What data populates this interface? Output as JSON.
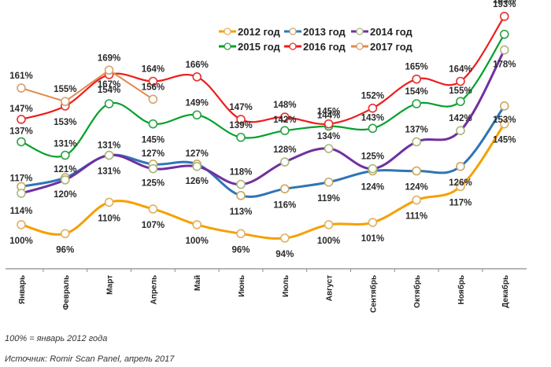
{
  "chart_data": {
    "type": "line",
    "title": "",
    "xlabel": "",
    "ylabel": "",
    "ylim": [
      80,
      196
    ],
    "grid": false,
    "legend_position": "top-right",
    "categories": [
      "Январь",
      "Февраль",
      "Март",
      "Апрель",
      "Май",
      "Июнь",
      "Июль",
      "Август",
      "Сентябрь",
      "Октябрь",
      "Ноябрь",
      "Декабрь"
    ],
    "series": [
      {
        "name": "2012 год",
        "color": "#F5A000",
        "values": [
          100,
          96,
          110,
          107,
          100,
          96,
          94,
          100,
          101,
          111,
          117,
          145
        ]
      },
      {
        "name": "2013 год",
        "color": "#2E75B6",
        "values": [
          117,
          121,
          131,
          127,
          127,
          113,
          116,
          119,
          124,
          124,
          126,
          153
        ]
      },
      {
        "name": "2014 год",
        "color": "#7030A0",
        "values": [
          114,
          120,
          131,
          125,
          126,
          118,
          128,
          134,
          125,
          137,
          142,
          178
        ]
      },
      {
        "name": "2015 год",
        "color": "#00A02A",
        "values": [
          137,
          131,
          154,
          145,
          149,
          139,
          142,
          144,
          143,
          154,
          155,
          185
        ]
      },
      {
        "name": "2016 год",
        "color": "#EE1C1C",
        "values": [
          147,
          153,
          167,
          164,
          166,
          147,
          148,
          145,
          152,
          165,
          164,
          193
        ]
      },
      {
        "name": "2017 год",
        "color": "#E08A4A",
        "values": [
          161,
          155,
          169,
          156,
          null,
          null,
          null,
          null,
          null,
          null,
          null,
          null
        ]
      }
    ],
    "labels": {
      "2012 год": [
        "100%",
        "96%",
        "110%",
        "107%",
        "100%",
        "96%",
        "94%",
        "100%",
        "101%",
        "111%",
        "117%",
        "145%"
      ],
      "2013 год": [
        "117%",
        "121%",
        "131%",
        "127%",
        "127%",
        "113%",
        "116%",
        "119%",
        "124%",
        "124%",
        "126%",
        "153%"
      ],
      "2014 год": [
        "114%",
        "120%",
        "131%",
        "125%",
        "126%",
        "118%",
        "128%",
        "134%",
        "125%",
        "137%",
        "142%",
        "178%"
      ],
      "2015 год": [
        "137%",
        "131%",
        "154%",
        "145%",
        "149%",
        "139%",
        "142%",
        "144%",
        "143%",
        "154%",
        "155%",
        "185%"
      ],
      "2016 год": [
        "147%",
        "153%",
        "167%",
        "164%",
        "166%",
        "147%",
        "148%",
        "145%",
        "152%",
        "165%",
        "164%",
        "193%"
      ],
      "2017 год": [
        "161%",
        "155%",
        "169%",
        "156%"
      ]
    }
  },
  "notes": {
    "base": "100% = январь 2012 года",
    "source": "Источник: Romir Scan Panel, апрель 2017"
  }
}
